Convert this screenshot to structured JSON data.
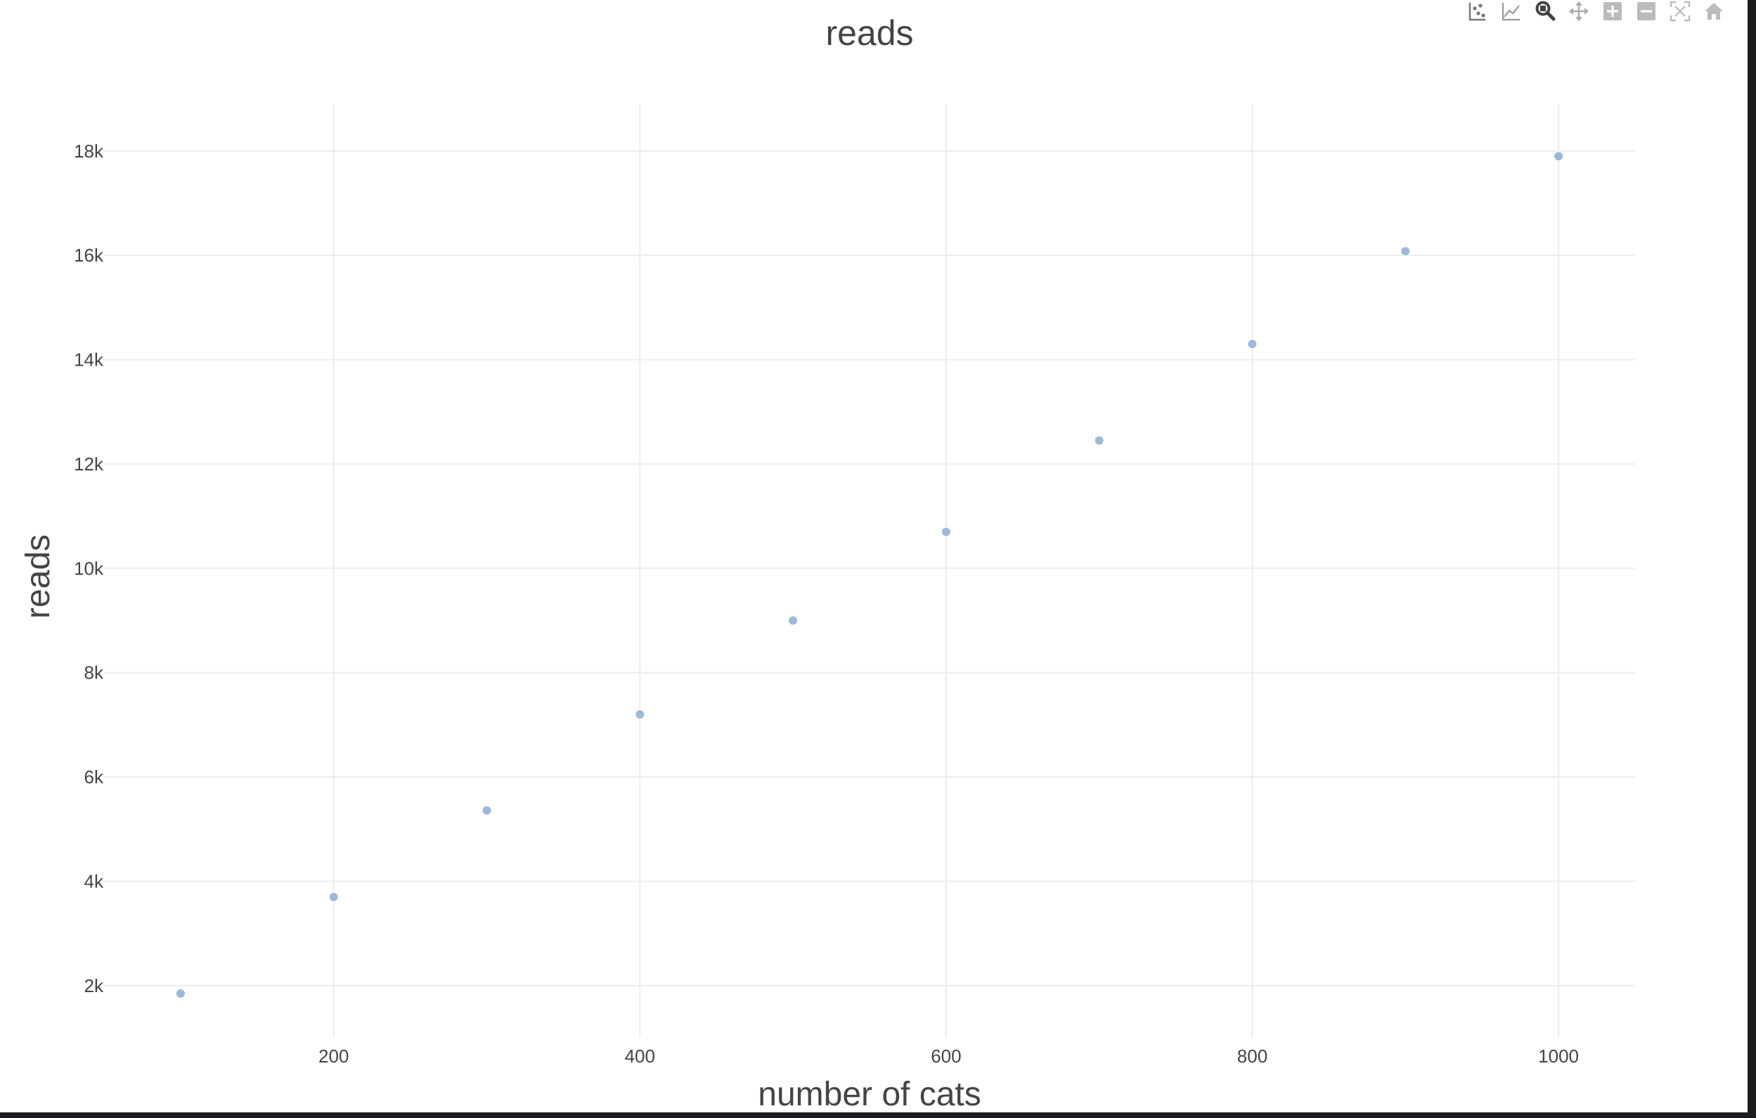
{
  "chart_data": {
    "type": "scatter",
    "title": "reads",
    "xlabel": "number of cats",
    "ylabel": "reads",
    "x": [
      100,
      200,
      300,
      400,
      500,
      600,
      700,
      800,
      900,
      1000
    ],
    "y": [
      1850,
      3700,
      5360,
      7200,
      9000,
      10700,
      12450,
      14300,
      16080,
      17900
    ],
    "xlim": [
      50,
      1050
    ],
    "ylim": [
      1000,
      18900
    ],
    "xticks": [
      200,
      400,
      600,
      800,
      1000
    ],
    "xtick_labels": [
      "200",
      "400",
      "600",
      "800",
      "1000"
    ],
    "yticks": [
      2000,
      4000,
      6000,
      8000,
      10000,
      12000,
      14000,
      16000,
      18000
    ],
    "ytick_labels": [
      "2k",
      "4k",
      "6k",
      "8k",
      "10k",
      "12k",
      "14k",
      "16k",
      "18k"
    ],
    "grid": true,
    "marker_color": "#9db9d9",
    "grid_color": "#ececec",
    "text_color": "#444444"
  },
  "modebar": {
    "icons": [
      "select-icon",
      "lasso-line-icon",
      "zoom-icon",
      "pan-icon",
      "zoom-in-icon",
      "zoom-out-icon",
      "autoscale-icon",
      "reset-home-icon"
    ]
  }
}
